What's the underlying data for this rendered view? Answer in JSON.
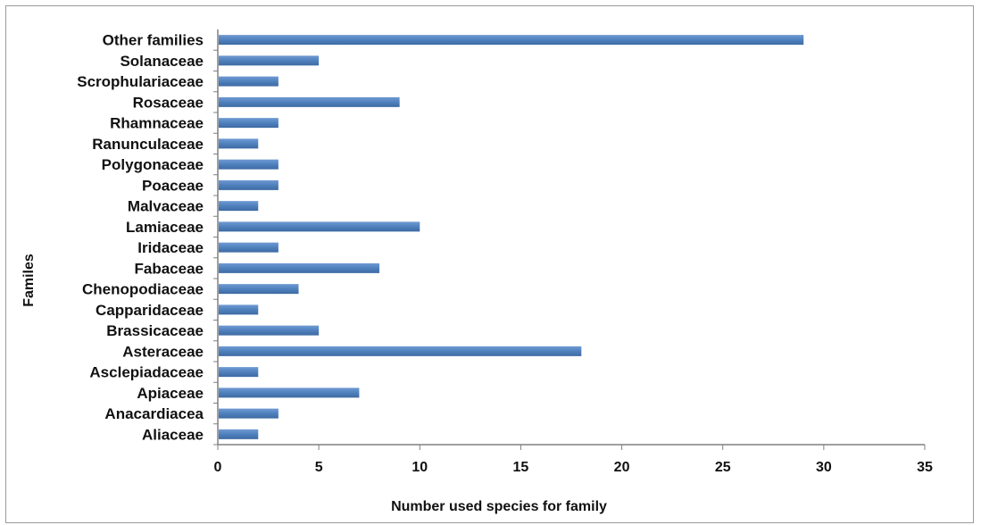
{
  "chart_data": {
    "type": "bar",
    "orientation": "horizontal",
    "title": "",
    "xlabel": "Number used species for family",
    "ylabel": "Familes",
    "xlim": [
      0,
      35
    ],
    "xticks": [
      0,
      5,
      10,
      15,
      20,
      25,
      30,
      35
    ],
    "grid": false,
    "legend": "none",
    "bar_color": "#4f81bd",
    "categories": [
      "Aliaceae",
      "Anacardiacea",
      "Apiaceae",
      "Asclepiadaceae",
      "Asteraceae",
      "Brassicaceae",
      "Capparidaceae",
      "Chenopodiaceae",
      "Fabaceae",
      "Iridaceae",
      "Lamiaceae",
      "Malvaceae",
      "Poaceae",
      "Polygonaceae",
      "Ranunculaceae",
      "Rhamnaceae",
      "Rosaceae",
      "Scrophulariaceae",
      "Solanaceae",
      "Other families"
    ],
    "values": [
      2,
      3,
      7,
      2,
      18,
      5,
      2,
      4,
      8,
      3,
      10,
      2,
      3,
      3,
      2,
      3,
      9,
      3,
      5,
      29
    ]
  }
}
